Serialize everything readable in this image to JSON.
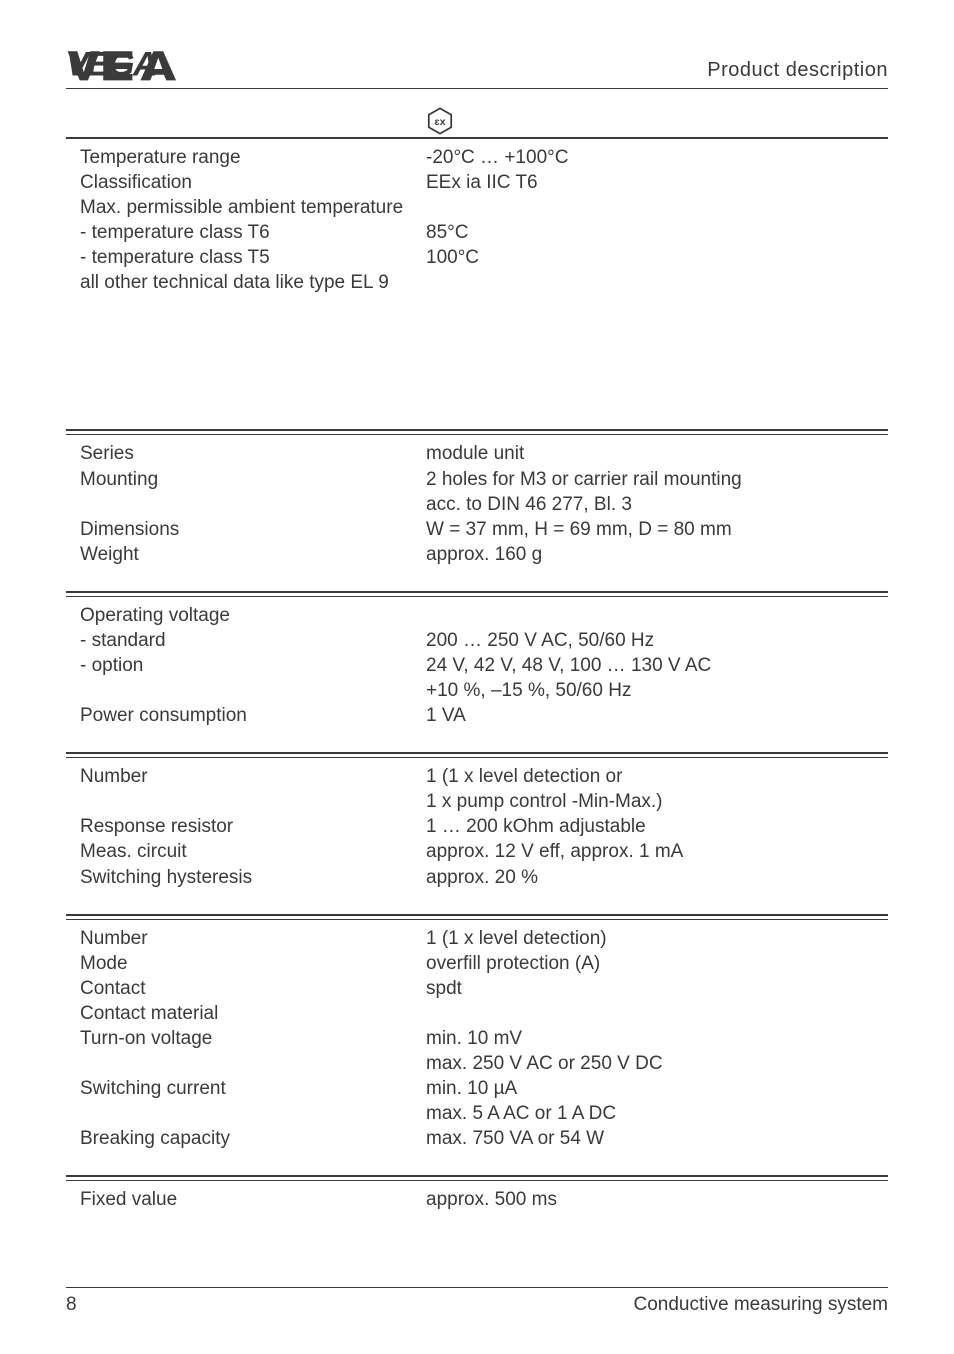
{
  "header": {
    "section_title": "Product description"
  },
  "ex_table": {
    "rows": [
      {
        "label": "Temperature range",
        "value": "-20°C … +100°C"
      },
      {
        "label": "Classification",
        "value": "EEx ia IIC T6"
      },
      {
        "label": "Max. permissible ambient temperature",
        "value": ""
      },
      {
        "label": "-  temperature class T6",
        "value": "85°C"
      },
      {
        "label": "-  temperature class T5",
        "value": "100°C"
      },
      {
        "label": "all other technical data like type EL 9",
        "value": ""
      }
    ]
  },
  "general": {
    "rows": [
      {
        "label": "Series",
        "value": "module unit"
      },
      {
        "label": "Mounting",
        "value": "2 holes for M3 or carrier rail mounting"
      },
      {
        "label": "",
        "value": "acc. to DIN 46 277, Bl. 3"
      },
      {
        "label": "Dimensions",
        "value": "W = 37 mm, H = 69 mm, D = 80 mm"
      },
      {
        "label": "Weight",
        "value": "approx. 160 g"
      }
    ]
  },
  "power": {
    "rows": [
      {
        "label": "Operating voltage",
        "value": ""
      },
      {
        "label": "- standard",
        "value": "200 … 250 V AC, 50/60 Hz"
      },
      {
        "label": "-  option",
        "value": "24 V, 42 V, 48 V, 100 … 130 V AC"
      },
      {
        "label": "",
        "value": "+10 %, –15 %, 50/60 Hz"
      },
      {
        "label": "Power consumption",
        "value": "1 VA"
      }
    ]
  },
  "input": {
    "rows": [
      {
        "label": "Number",
        "value": "1 (1 x level detection or"
      },
      {
        "label": "",
        "value": "1 x pump control -Min-Max.)"
      },
      {
        "label": "Response resistor",
        "value": "1 … 200 kOhm adjustable"
      },
      {
        "label": "Meas. circuit",
        "value": "approx. 12 V eff, approx. 1 mA"
      },
      {
        "label": "Switching hysteresis",
        "value": "approx. 20 %"
      }
    ]
  },
  "output": {
    "rows": [
      {
        "label": "Number",
        "value": "1 (1 x level detection)"
      },
      {
        "label": "Mode",
        "value": "overfill protection (A)"
      },
      {
        "label": "Contact",
        "value": "spdt"
      },
      {
        "label": "Contact material",
        "value": ""
      },
      {
        "label": "Turn-on voltage",
        "value": "min. 10 mV"
      },
      {
        "label": "",
        "value": "max. 250 V AC or 250 V DC"
      },
      {
        "label": "Switching current",
        "value": "min. 10 µA"
      },
      {
        "label": "",
        "value": "max. 5 A AC or 1 A DC"
      },
      {
        "label": "Breaking capacity",
        "value": "max. 750 VA or 54 W"
      }
    ]
  },
  "delay": {
    "rows": [
      {
        "label": "Fixed value",
        "value": "approx. 500 ms"
      }
    ]
  },
  "footer": {
    "page": "8",
    "title": "Conductive measuring system"
  },
  "style": {
    "text_color": "#3a3a3a",
    "bg_color": "#ffffff",
    "font_size_body": 19,
    "font_size_header": 20,
    "label_col_width": 346
  }
}
